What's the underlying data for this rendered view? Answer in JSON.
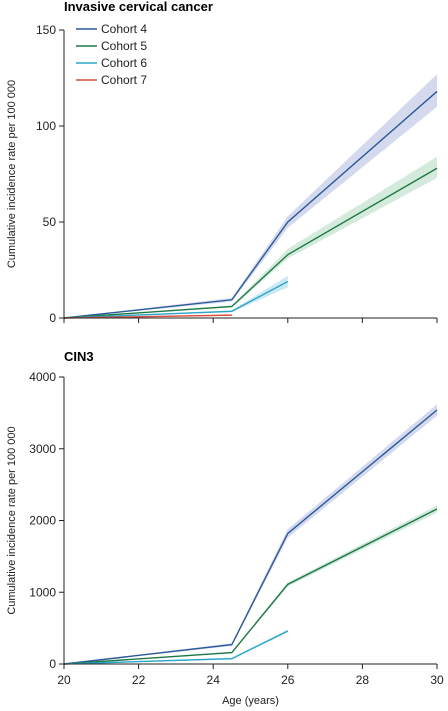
{
  "chart_data": [
    {
      "type": "line",
      "title": "Invasive cervical cancer",
      "ylabel": "Cumulative incidence rate per 100 000",
      "xlabel": "",
      "xlim": [
        20,
        30
      ],
      "ylim": [
        0,
        150
      ],
      "yticks": [
        0,
        50,
        100,
        150
      ],
      "xticks": [],
      "grid": false,
      "legend": "top-left",
      "series": [
        {
          "name": "Cohort 4",
          "color": "#2a5a9a",
          "band_color": "#b8bfe3",
          "x": [
            20,
            24.5,
            26,
            30
          ],
          "y": [
            0,
            9.5,
            50,
            118
          ],
          "lower": [
            0,
            8.5,
            47,
            110
          ],
          "upper": [
            0,
            10.5,
            53,
            127
          ]
        },
        {
          "name": "Cohort 5",
          "color": "#1e7a44",
          "band_color": "#b5dcc4",
          "x": [
            20,
            24.5,
            26,
            30
          ],
          "y": [
            0,
            6,
            33,
            78
          ],
          "lower": [
            0,
            5.5,
            31,
            73
          ],
          "upper": [
            0,
            6.5,
            36,
            84
          ]
        },
        {
          "name": "Cohort 6",
          "color": "#2aa5cc",
          "band_color": "#a8dbeb",
          "x": [
            20,
            24.5,
            26
          ],
          "y": [
            0,
            3.5,
            19
          ],
          "lower": [
            0,
            3,
            16
          ],
          "upper": [
            0,
            4,
            22
          ]
        },
        {
          "name": "Cohort 7",
          "color": "#d9503f",
          "band_color": "#f2b5ab",
          "x": [
            20,
            24.5
          ],
          "y": [
            0,
            1.5
          ],
          "lower": [
            0,
            1.2
          ],
          "upper": [
            0,
            1.8
          ]
        }
      ]
    },
    {
      "type": "line",
      "title": "CIN3",
      "ylabel": "Cumulative incidence rate per 100 000",
      "xlabel": "Age (years)",
      "xlim": [
        20,
        30
      ],
      "ylim": [
        0,
        4000
      ],
      "yticks": [
        0,
        1000,
        2000,
        3000,
        4000
      ],
      "xticks": [
        20,
        22,
        24,
        26,
        28,
        30
      ],
      "grid": false,
      "series": [
        {
          "name": "Cohort 4",
          "color": "#2a5a9a",
          "band_color": "#b8bfe3",
          "x": [
            20,
            24.5,
            26,
            30
          ],
          "y": [
            0,
            270,
            1820,
            3540
          ],
          "lower": [
            0,
            250,
            1760,
            3460
          ],
          "upper": [
            0,
            290,
            1880,
            3620
          ]
        },
        {
          "name": "Cohort 5",
          "color": "#1e7a44",
          "band_color": "#b5dcc4",
          "x": [
            20,
            24.5,
            26,
            30
          ],
          "y": [
            0,
            160,
            1110,
            2160
          ],
          "lower": [
            0,
            150,
            1080,
            2110
          ],
          "upper": [
            0,
            170,
            1140,
            2210
          ]
        },
        {
          "name": "Cohort 6",
          "color": "#2aa5cc",
          "band_color": "#a8dbeb",
          "x": [
            20,
            24.5,
            26
          ],
          "y": [
            0,
            75,
            460
          ],
          "lower": [
            0,
            70,
            440
          ],
          "upper": [
            0,
            80,
            480
          ]
        }
      ]
    }
  ]
}
